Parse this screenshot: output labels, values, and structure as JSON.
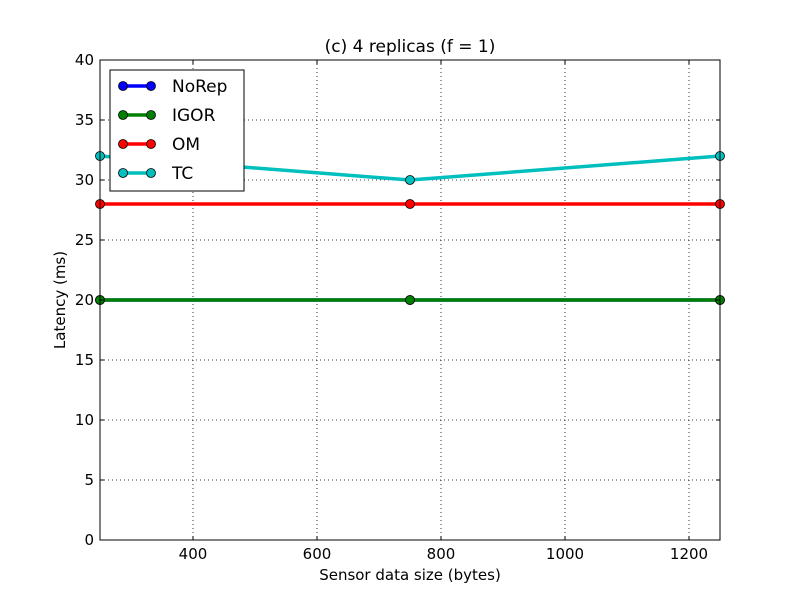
{
  "chart_data": {
    "type": "line",
    "title": "(c) 4 replicas (f = 1)",
    "xlabel": "Sensor data size (bytes)",
    "ylabel": "Latency (ms)",
    "xlim": [
      250,
      1250
    ],
    "ylim": [
      0,
      40
    ],
    "xticks": [
      400,
      600,
      800,
      1000,
      1200
    ],
    "yticks": [
      0,
      5,
      10,
      15,
      20,
      25,
      30,
      35,
      40
    ],
    "grid": true,
    "legend_position": "top-left",
    "x": [
      250,
      750,
      1250
    ],
    "series": [
      {
        "name": "NoRep",
        "color": "#0000ff",
        "values": [
          20,
          20,
          20
        ]
      },
      {
        "name": "IGOR",
        "color": "#008000",
        "values": [
          20,
          20,
          20
        ]
      },
      {
        "name": "OM",
        "color": "#ff0000",
        "values": [
          28,
          28,
          28
        ]
      },
      {
        "name": "TC",
        "color": "#00bfbf",
        "values": [
          32,
          30,
          32
        ]
      }
    ]
  }
}
